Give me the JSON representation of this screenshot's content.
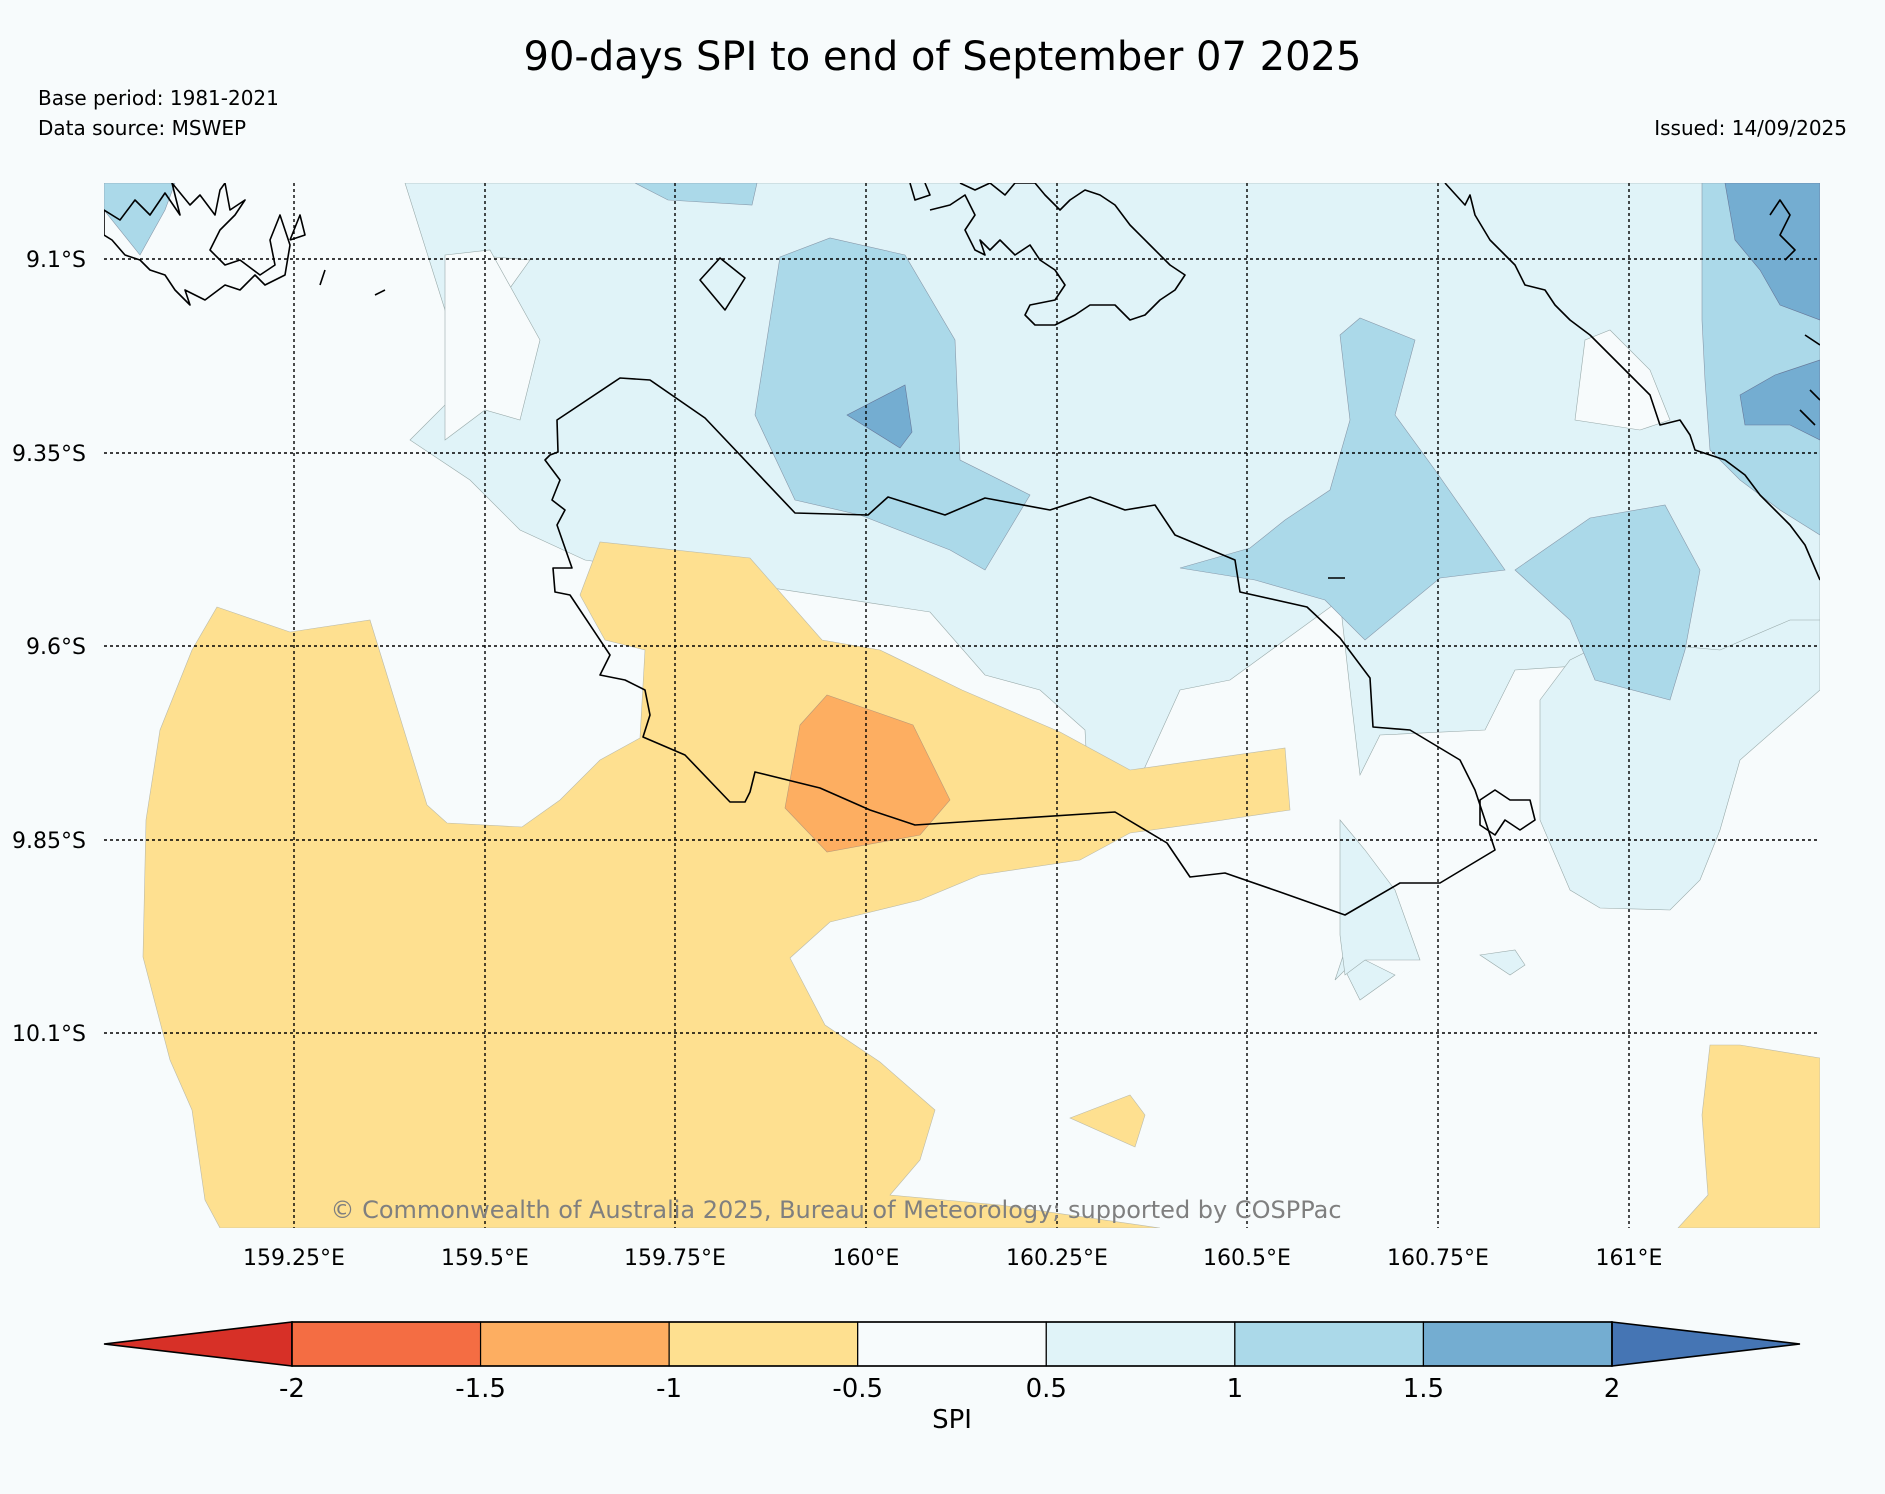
{
  "header": {
    "title": "90-days SPI to end of September 07 2025",
    "base_period": "Base period: 1981-2021",
    "data_source": "Data source: MSWEP",
    "issued": "Issued: 14/09/2025"
  },
  "map": {
    "lat_labels": [
      "9.1°S",
      "9.35°S",
      "9.6°S",
      "9.85°S",
      "10.1°S"
    ],
    "lon_labels": [
      "159.25°E",
      "159.5°E",
      "159.75°E",
      "160°E",
      "160.25°E",
      "160.5°E",
      "160.75°E",
      "161°E"
    ],
    "copyright": "© Commonwealth of Australia 2025, Bureau of Meteorology; supported by COSPPac"
  },
  "colorbar": {
    "label": "SPI",
    "ticks": [
      "-2",
      "-1.5",
      "-1",
      "-0.5",
      "0.5",
      "1",
      "1.5",
      "2"
    ],
    "colors": [
      "#d73027",
      "#f46d43",
      "#fdae61",
      "#fee090",
      "#f7fbfc",
      "#e0f3f8",
      "#abd9e9",
      "#74add1",
      "#4575b4"
    ]
  },
  "colors": {
    "dry_moderate": "#fee090",
    "dry_severe": "#fdae61",
    "wet_slight": "#e0f3f8",
    "wet_moderate": "#abd9e9",
    "wet_severe": "#74add1"
  }
}
